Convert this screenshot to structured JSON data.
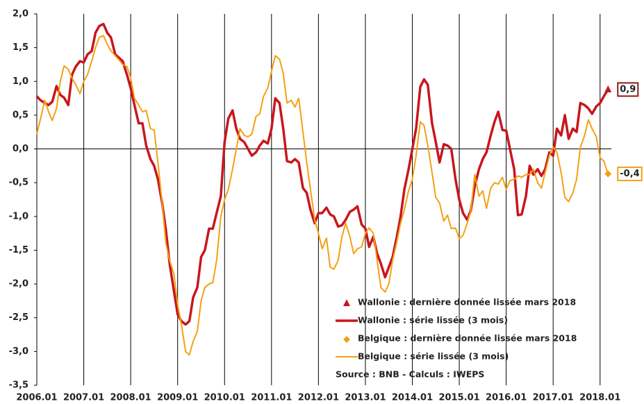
{
  "chart_data": {
    "type": "line",
    "x": [
      2006.0,
      2006.08,
      2006.17,
      2006.25,
      2006.33,
      2006.42,
      2006.5,
      2006.58,
      2006.67,
      2006.75,
      2006.83,
      2006.92,
      2007.0,
      2007.08,
      2007.17,
      2007.25,
      2007.33,
      2007.42,
      2007.5,
      2007.58,
      2007.67,
      2007.75,
      2007.83,
      2007.92,
      2008.0,
      2008.08,
      2008.17,
      2008.25,
      2008.33,
      2008.42,
      2008.5,
      2008.58,
      2008.67,
      2008.75,
      2008.83,
      2008.92,
      2009.0,
      2009.08,
      2009.17,
      2009.25,
      2009.33,
      2009.42,
      2009.5,
      2009.58,
      2009.67,
      2009.75,
      2009.83,
      2009.92,
      2010.0,
      2010.08,
      2010.17,
      2010.25,
      2010.33,
      2010.42,
      2010.5,
      2010.58,
      2010.67,
      2010.75,
      2010.83,
      2010.92,
      2011.0,
      2011.08,
      2011.17,
      2011.25,
      2011.33,
      2011.42,
      2011.5,
      2011.58,
      2011.67,
      2011.75,
      2011.83,
      2011.92,
      2012.0,
      2012.08,
      2012.17,
      2012.25,
      2012.33,
      2012.42,
      2012.5,
      2012.58,
      2012.67,
      2012.75,
      2012.83,
      2012.92,
      2013.0,
      2013.08,
      2013.17,
      2013.25,
      2013.33,
      2013.42,
      2013.5,
      2013.58,
      2013.67,
      2013.75,
      2013.83,
      2013.92,
      2014.0,
      2014.08,
      2014.17,
      2014.25,
      2014.33,
      2014.42,
      2014.5,
      2014.58,
      2014.67,
      2014.75,
      2014.83,
      2014.92,
      2015.0,
      2015.08,
      2015.17,
      2015.25,
      2015.33,
      2015.42,
      2015.5,
      2015.58,
      2015.67,
      2015.75,
      2015.83,
      2015.92,
      2016.0,
      2016.08,
      2016.17,
      2016.25,
      2016.33,
      2016.42,
      2016.5,
      2016.58,
      2016.67,
      2016.75,
      2016.83,
      2016.92,
      2017.0,
      2017.08,
      2017.17,
      2017.25,
      2017.33,
      2017.42,
      2017.5,
      2017.58,
      2017.67,
      2017.75,
      2017.83,
      2017.92,
      2018.0,
      2018.08,
      2018.17
    ],
    "series": [
      {
        "name": "Wallonie : série lissée (3 mois)",
        "color": "#c8161d",
        "last_name": "Wallonie : dernière donnée lissée mars 2018",
        "last_label": "0,9",
        "last_marker": "triangle",
        "values": [
          0.78,
          0.72,
          0.68,
          0.65,
          0.7,
          0.93,
          0.8,
          0.76,
          0.65,
          1.1,
          1.22,
          1.3,
          1.28,
          1.4,
          1.45,
          1.72,
          1.82,
          1.85,
          1.72,
          1.65,
          1.4,
          1.35,
          1.3,
          1.1,
          0.9,
          0.65,
          0.38,
          0.38,
          0.05,
          -0.15,
          -0.25,
          -0.45,
          -0.8,
          -1.2,
          -1.7,
          -2.1,
          -2.45,
          -2.55,
          -2.6,
          -2.55,
          -2.2,
          -2.05,
          -1.6,
          -1.5,
          -1.18,
          -1.18,
          -0.95,
          -0.7,
          0.1,
          0.45,
          0.57,
          0.3,
          0.15,
          0.1,
          0.0,
          -0.1,
          -0.05,
          0.05,
          0.12,
          0.08,
          0.3,
          0.75,
          0.68,
          0.3,
          -0.18,
          -0.2,
          -0.15,
          -0.2,
          -0.58,
          -0.65,
          -0.9,
          -1.1,
          -0.95,
          -0.95,
          -0.87,
          -0.97,
          -1.0,
          -1.15,
          -1.13,
          -1.05,
          -0.93,
          -0.9,
          -0.85,
          -1.12,
          -1.18,
          -1.45,
          -1.3,
          -1.55,
          -1.7,
          -1.9,
          -1.75,
          -1.6,
          -1.3,
          -1.0,
          -0.6,
          -0.3,
          0.0,
          0.3,
          0.92,
          1.03,
          0.95,
          0.38,
          0.1,
          -0.2,
          0.07,
          0.05,
          0.0,
          -0.45,
          -0.75,
          -0.95,
          -1.05,
          -0.9,
          -0.55,
          -0.3,
          -0.15,
          -0.05,
          0.2,
          0.4,
          0.55,
          0.28,
          0.27,
          0.0,
          -0.3,
          -0.98,
          -0.97,
          -0.7,
          -0.25,
          -0.38,
          -0.3,
          -0.4,
          -0.3,
          -0.05,
          -0.1,
          0.3,
          0.2,
          0.5,
          0.15,
          0.3,
          0.25,
          0.68,
          0.65,
          0.6,
          0.52,
          0.63,
          0.68,
          0.78,
          0.88
        ]
      },
      {
        "name": "Belgique : série lissée (3 mois)",
        "color": "#f5a011",
        "last_name": "Belgique : dernière donnée lissée mars 2018",
        "last_label": "-0,4",
        "last_marker": "diamond",
        "values": [
          0.22,
          0.45,
          0.72,
          0.55,
          0.42,
          0.6,
          1.0,
          1.23,
          1.18,
          1.05,
          0.95,
          0.82,
          1.0,
          1.1,
          1.3,
          1.5,
          1.65,
          1.68,
          1.55,
          1.45,
          1.38,
          1.32,
          1.25,
          1.22,
          1.05,
          0.75,
          0.65,
          0.55,
          0.57,
          0.3,
          0.28,
          -0.2,
          -0.8,
          -1.4,
          -1.65,
          -1.85,
          -2.3,
          -2.6,
          -3.0,
          -3.05,
          -2.85,
          -2.7,
          -2.25,
          -2.05,
          -2.0,
          -1.98,
          -1.65,
          -1.0,
          -0.75,
          -0.6,
          -0.3,
          0.0,
          0.3,
          0.2,
          0.18,
          0.22,
          0.48,
          0.52,
          0.78,
          0.9,
          1.15,
          1.38,
          1.33,
          1.12,
          0.68,
          0.72,
          0.62,
          0.75,
          0.25,
          -0.2,
          -0.6,
          -1.05,
          -1.25,
          -1.48,
          -1.32,
          -1.75,
          -1.78,
          -1.65,
          -1.3,
          -1.1,
          -1.3,
          -1.55,
          -1.48,
          -1.45,
          -1.25,
          -1.17,
          -1.25,
          -1.65,
          -2.05,
          -2.12,
          -2.0,
          -1.65,
          -1.38,
          -1.1,
          -0.9,
          -0.62,
          -0.45,
          -0.1,
          0.4,
          0.35,
          0.05,
          -0.35,
          -0.72,
          -0.8,
          -1.07,
          -0.98,
          -1.18,
          -1.17,
          -1.33,
          -1.28,
          -1.1,
          -0.9,
          -0.38,
          -0.7,
          -0.62,
          -0.88,
          -0.58,
          -0.5,
          -0.52,
          -0.42,
          -0.6,
          -0.47,
          -0.45,
          -0.4,
          -0.42,
          -0.38,
          -0.38,
          -0.3,
          -0.5,
          -0.58,
          -0.35,
          -0.1,
          0.03,
          -0.05,
          -0.35,
          -0.72,
          -0.78,
          -0.65,
          -0.45,
          0.02,
          0.2,
          0.43,
          0.3,
          0.18,
          -0.13,
          -0.18,
          -0.37
        ]
      }
    ],
    "xlim": [
      2006,
      2018.24
    ],
    "xticks": [
      {
        "value": 2006,
        "label": "2006.01"
      },
      {
        "value": 2007,
        "label": "2007.01"
      },
      {
        "value": 2008,
        "label": "2008.01"
      },
      {
        "value": 2009,
        "label": "2009.01"
      },
      {
        "value": 2010,
        "label": "2010.01"
      },
      {
        "value": 2011,
        "label": "2011.01"
      },
      {
        "value": 2012,
        "label": "2012.01"
      },
      {
        "value": 2013,
        "label": "2013.01"
      },
      {
        "value": 2014,
        "label": "2014.01"
      },
      {
        "value": 2015,
        "label": "2015.01"
      },
      {
        "value": 2016,
        "label": "2016.01"
      },
      {
        "value": 2017,
        "label": "2017.01"
      },
      {
        "value": 2018,
        "label": "2018.01"
      }
    ],
    "ylim": [
      -3.5,
      2.0
    ],
    "yticks": [
      {
        "value": -3.5,
        "label": "-3,5"
      },
      {
        "value": -3.0,
        "label": "-3,0"
      },
      {
        "value": -2.5,
        "label": "-2,5"
      },
      {
        "value": -2.0,
        "label": "-2,0"
      },
      {
        "value": -1.5,
        "label": "-1,5"
      },
      {
        "value": -1.0,
        "label": "-1,0"
      },
      {
        "value": -0.5,
        "label": "-0,5"
      },
      {
        "value": 0.0,
        "label": "0,0"
      },
      {
        "value": 0.5,
        "label": "0,5"
      },
      {
        "value": 1.0,
        "label": "1,0"
      },
      {
        "value": 1.5,
        "label": "1,5"
      },
      {
        "value": 2.0,
        "label": "2,0"
      }
    ],
    "grid": "x",
    "legend": "lower right",
    "source": "Source : BNB - Calculs : IWEPS"
  }
}
